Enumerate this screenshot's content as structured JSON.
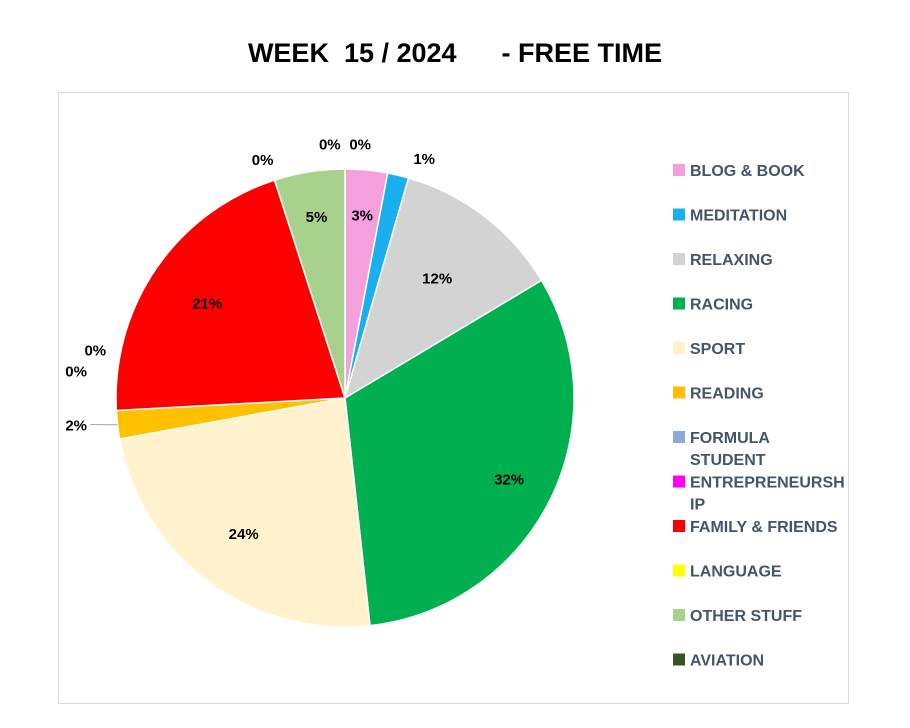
{
  "chart_data": {
    "type": "pie",
    "title": "WEEK  15 / 2024      - FREE TIME",
    "legend_position": "right",
    "categories": [
      "BLOG & BOOK",
      "MEDITATION",
      "RELAXING",
      "RACING",
      "SPORT",
      "READING",
      "FORMULA STUDENT",
      "ENTREPRENEURSHIP",
      "FAMILY & FRIENDS",
      "LANGUAGE",
      "OTHER STUFF",
      "AVIATION"
    ],
    "legend_labels": [
      [
        "BLOG & BOOK"
      ],
      [
        "MEDITATION"
      ],
      [
        "RELAXING"
      ],
      [
        "RACING"
      ],
      [
        "SPORT"
      ],
      [
        "READING"
      ],
      [
        "FORMULA",
        "STUDENT"
      ],
      [
        "ENTREPRENEURSH",
        "IP"
      ],
      [
        "FAMILY & FRIENDS"
      ],
      [
        "LANGUAGE"
      ],
      [
        "OTHER STUFF"
      ],
      [
        "AVIATION"
      ]
    ],
    "values": [
      3,
      1.5,
      12,
      32,
      24,
      2,
      0,
      0,
      21,
      0,
      5,
      0
    ],
    "data_labels": [
      "3%",
      "1%",
      "12%",
      "32%",
      "24%",
      "2%",
      "0%",
      "0%",
      "21%",
      "0%",
      "5%",
      "0%"
    ],
    "top_zero_label": "0%",
    "colors": [
      "#f4a0dc",
      "#1ab0f0",
      "#d3d3d3",
      "#00b050",
      "#fff2cc",
      "#ffc000",
      "#8eaadb",
      "#ff00ff",
      "#ff0000",
      "#ffff00",
      "#a9d18e",
      "#375623"
    ]
  }
}
